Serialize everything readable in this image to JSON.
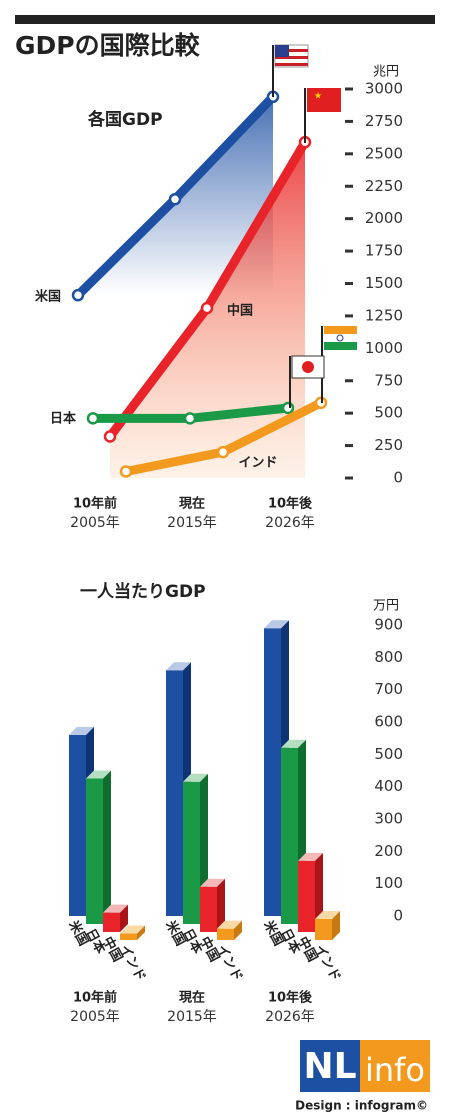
{
  "title": "GDPの国際比較",
  "chart_data": [
    {
      "type": "line",
      "title": "各国GDP",
      "unit": "兆円",
      "categories": [
        "10年前",
        "現在",
        "10年後"
      ],
      "category_years": [
        "2005年",
        "2015年",
        "2026年"
      ],
      "ylim": [
        0,
        3000
      ],
      "yticks": [
        0,
        250,
        500,
        750,
        1000,
        1250,
        1500,
        1750,
        2000,
        2250,
        2500,
        2750,
        3000
      ],
      "series": [
        {
          "name": "米国",
          "color": "#1d4fa3",
          "values": [
            1410,
            2150,
            2940
          ]
        },
        {
          "name": "中国",
          "color": "#e8242a",
          "values": [
            320,
            1310,
            2590
          ]
        },
        {
          "name": "日本",
          "color": "#1a9a46",
          "values": [
            460,
            460,
            540
          ]
        },
        {
          "name": "インド",
          "color": "#f39a1e",
          "values": [
            50,
            200,
            580
          ]
        }
      ]
    },
    {
      "type": "bar",
      "title": "一人当たりGDP",
      "unit": "万円",
      "categories": [
        "10年前",
        "現在",
        "10年後"
      ],
      "category_years": [
        "2005年",
        "2015年",
        "2026年"
      ],
      "ylim": [
        0,
        900
      ],
      "yticks": [
        0,
        100,
        200,
        300,
        400,
        500,
        600,
        700,
        800,
        900
      ],
      "series": [
        {
          "name": "米国",
          "color": "#1d4fa3",
          "values": [
            560,
            760,
            890
          ]
        },
        {
          "name": "日本",
          "color": "#1a9a46",
          "values": [
            450,
            440,
            545
          ]
        },
        {
          "name": "中国",
          "color": "#e8242a",
          "values": [
            60,
            140,
            220
          ]
        },
        {
          "name": "インド",
          "color": "#f39a1e",
          "values": [
            20,
            35,
            65
          ]
        }
      ]
    }
  ],
  "footer": {
    "logo_left": "NL",
    "logo_right": "info",
    "credit": "Design : infogram©"
  }
}
